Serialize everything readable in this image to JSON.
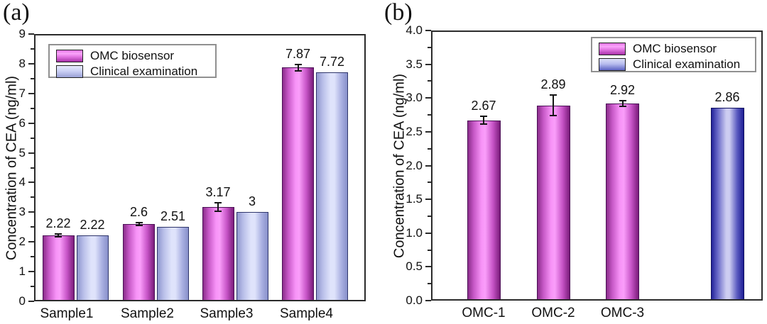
{
  "figure": {
    "background_color": "#ffffff",
    "frame_color": "#2b2b2b",
    "series_colors": {
      "magenta_edge": "#8b2d8b",
      "magenta_center": "#fa9efa",
      "blue_light_edge": "#8f96ce",
      "blue_light_center": "#dfe3fb",
      "blue_dark_edge": "#232399",
      "blue_dark_center": "#cdcdf1"
    }
  },
  "chart_data": [
    {
      "panel_label": "(a)",
      "type": "bar",
      "title": "",
      "xlabel": "",
      "ylabel": "Concentration of CEA (ng/ml)",
      "ylim": [
        0,
        9
      ],
      "ytick_step": 1,
      "ytick_decimals": 0,
      "grid": false,
      "legend_position": "top-left",
      "legend_entries": [
        "OMC biosensor",
        "Clinical examination"
      ],
      "categories": [
        "Sample1",
        "Sample2",
        "Sample3",
        "Sample4"
      ],
      "series": [
        {
          "name": "OMC biosensor",
          "color_key": "magenta",
          "values": [
            2.22,
            2.6,
            3.17,
            7.87
          ],
          "value_labels": [
            "2.22",
            "2.6",
            "3.17",
            "7.87"
          ],
          "errors": [
            0.05,
            0.04,
            0.14,
            0.1
          ]
        },
        {
          "name": "Clinical examination",
          "color_key": "blue_light",
          "values": [
            2.22,
            2.51,
            3,
            7.72
          ],
          "value_labels": [
            "2.22",
            "2.51",
            "3",
            "7.72"
          ],
          "errors": [
            0,
            0,
            0,
            0
          ]
        }
      ]
    },
    {
      "panel_label": "(b)",
      "type": "bar",
      "title": "",
      "xlabel": "",
      "ylabel": "Concentration of CEA (ng/ml)",
      "ylim": [
        0,
        4.0
      ],
      "ytick_step": 0.5,
      "ytick_decimals": 1,
      "grid": false,
      "legend_position": "top-right",
      "legend_entries": [
        "OMC biosensor",
        "Clinical examination"
      ],
      "categories": [
        "OMC-1",
        "OMC-2",
        "OMC-3",
        ""
      ],
      "series": [
        {
          "name": "OMC biosensor",
          "color_key": "magenta",
          "values": [
            2.67,
            2.89,
            2.92,
            null
          ],
          "value_labels": [
            "2.67",
            "2.89",
            "2.92",
            null
          ],
          "errors": [
            0.06,
            0.15,
            0.04,
            null
          ]
        },
        {
          "name": "Clinical examination",
          "color_key": "blue_dark",
          "values": [
            null,
            null,
            null,
            2.86
          ],
          "value_labels": [
            null,
            null,
            null,
            "2.86"
          ],
          "errors": [
            null,
            null,
            null,
            0
          ]
        }
      ]
    }
  ]
}
